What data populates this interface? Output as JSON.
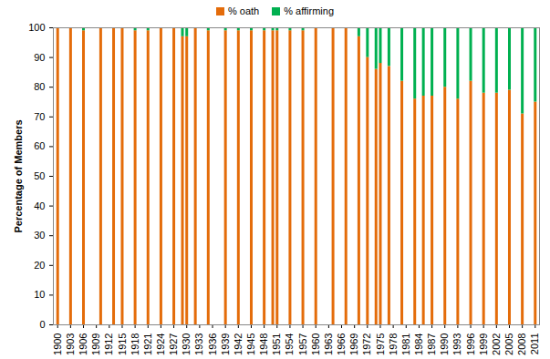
{
  "chart_data": {
    "type": "bar",
    "stacked": true,
    "legend": "top",
    "y_label": "Percentage of Members",
    "x": [
      1900,
      1903,
      1906,
      1910,
      1913,
      1915,
      1918,
      1921,
      1924,
      1927,
      1929,
      1930,
      1932,
      1935,
      1939,
      1942,
      1945,
      1948,
      1950,
      1951,
      1954,
      1957,
      1960,
      1964,
      1967,
      1970,
      1972,
      1974,
      1975,
      1977,
      1980,
      1983,
      1985,
      1987,
      1990,
      1993,
      1996,
      1999,
      2002,
      2005,
      2008,
      2011
    ],
    "series": [
      {
        "name": "% oath",
        "color": "#E46C0A",
        "values": [
          100,
          100,
          99,
          100,
          100,
          100,
          99,
          99,
          100,
          100,
          97,
          97,
          100,
          99,
          99,
          99,
          99,
          99,
          99,
          99,
          99,
          99,
          100,
          100,
          100,
          97,
          90,
          86,
          88,
          87,
          82,
          76,
          77,
          77,
          80,
          76,
          82,
          78,
          78,
          79,
          71,
          75
        ]
      },
      {
        "name": "% affirming",
        "color": "#00B050",
        "values": [
          0,
          0,
          1,
          0,
          0,
          0,
          1,
          1,
          0,
          0,
          3,
          3,
          0,
          1,
          1,
          1,
          1,
          1,
          1,
          1,
          1,
          1,
          0,
          0,
          0,
          3,
          10,
          14,
          12,
          13,
          18,
          24,
          23,
          23,
          20,
          24,
          18,
          22,
          22,
          21,
          29,
          25
        ]
      }
    ],
    "xlim": [
      1899,
      2012
    ],
    "xticks": [
      1900,
      1903,
      1906,
      1909,
      1912,
      1915,
      1918,
      1921,
      1924,
      1927,
      1930,
      1933,
      1936,
      1939,
      1942,
      1945,
      1948,
      1951,
      1954,
      1957,
      1960,
      1963,
      1966,
      1969,
      1972,
      1975,
      1978,
      1981,
      1984,
      1987,
      1990,
      1993,
      1996,
      1999,
      2002,
      2005,
      2008,
      2011
    ],
    "ylim": [
      0,
      100
    ],
    "yticks": [
      0,
      10,
      20,
      30,
      40,
      50,
      60,
      70,
      80,
      90,
      100
    ],
    "grid": false
  }
}
